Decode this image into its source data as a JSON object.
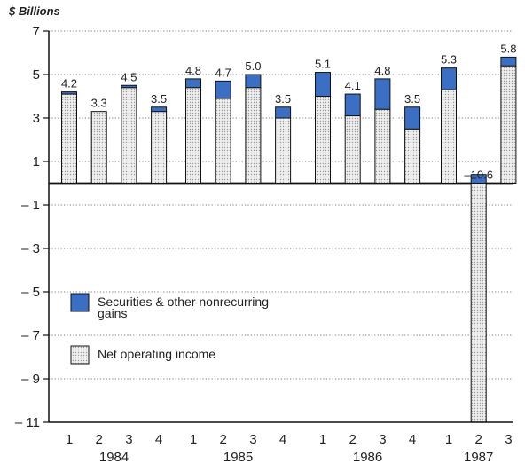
{
  "chart_data": {
    "type": "bar",
    "stacked": true,
    "ylabel": "$ Billions",
    "ylim": [
      -11,
      7
    ],
    "y_ticks": [
      7,
      5,
      3,
      1,
      -1,
      -3,
      -5,
      -7,
      -9,
      -11
    ],
    "y_tick_labels": [
      "7",
      "5",
      "3",
      "1",
      "– 1",
      "– 3",
      "– 5",
      "– 7",
      "– 9",
      "– 11"
    ],
    "grid": true,
    "legend_position": "lower-left",
    "colors": {
      "securities": "#3a6fc4",
      "net_operating": "#efefef",
      "net_operating_dots": "#9a9a9a",
      "grid": "#777777",
      "axis": "#111111"
    },
    "groups": [
      {
        "year": "1984",
        "quarters": [
          "1",
          "2",
          "3",
          "4"
        ]
      },
      {
        "year": "1985",
        "quarters": [
          "1",
          "2",
          "3",
          "4"
        ]
      },
      {
        "year": "1986",
        "quarters": [
          "1",
          "2",
          "3",
          "4"
        ]
      },
      {
        "year": "1987",
        "quarters": [
          "1",
          "2",
          "3"
        ]
      }
    ],
    "series": [
      {
        "name": "Securities & other nonrecurring gains",
        "values": [
          0.1,
          0.0,
          0.1,
          0.2,
          0.4,
          0.8,
          0.6,
          0.5,
          1.1,
          1.0,
          1.4,
          1.0,
          1.0,
          0.4,
          0.4
        ]
      },
      {
        "name": "Net operating income",
        "values": [
          4.1,
          3.3,
          4.4,
          3.3,
          4.4,
          3.9,
          4.4,
          3.0,
          4.0,
          3.1,
          3.4,
          2.5,
          4.3,
          -11.0,
          5.4
        ]
      }
    ],
    "totals": [
      4.2,
      3.3,
      4.5,
      3.5,
      4.8,
      4.7,
      5.0,
      3.5,
      5.1,
      4.1,
      4.8,
      3.5,
      5.3,
      -10.6,
      5.8
    ],
    "data_labels": [
      "4.2",
      "3.3",
      "4.5",
      "3.5",
      "4.8",
      "4.7",
      "5.0",
      "3.5",
      "5.1",
      "4.1",
      "4.8",
      "3.5",
      "5.3",
      "–10.6",
      "5.8"
    ],
    "legend": [
      {
        "series_index": 0,
        "lines": [
          "Securities & other nonrecurring",
          "gains"
        ]
      },
      {
        "series_index": 1,
        "lines": [
          "Net operating income"
        ]
      }
    ]
  }
}
